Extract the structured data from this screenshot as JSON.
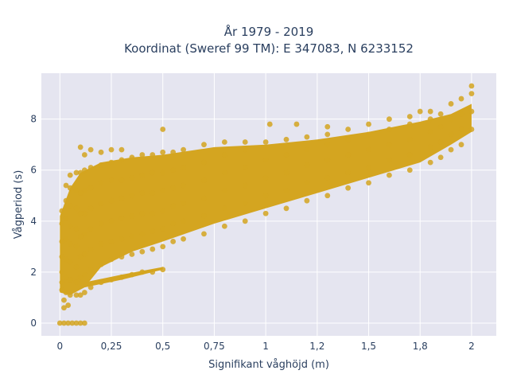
{
  "chart_data": {
    "type": "scatter",
    "title_line1": "År 1979 - 2019",
    "title_line2": "Koordinat (Sweref 99 TM): E 347083, N 6233152",
    "xlabel": "Signifikant våghöjd (m)",
    "ylabel": "Vågperiod (s)",
    "xlim": [
      -0.09,
      2.12
    ],
    "ylim": [
      -0.5,
      9.8
    ],
    "x_ticks": [
      {
        "value": 0,
        "label": "0"
      },
      {
        "value": 0.25,
        "label": "0,25"
      },
      {
        "value": 0.5,
        "label": "0,5"
      },
      {
        "value": 0.75,
        "label": "0,75"
      },
      {
        "value": 1.0,
        "label": "1"
      },
      {
        "value": 1.25,
        "label": "1,2"
      },
      {
        "value": 1.5,
        "label": "1,5"
      },
      {
        "value": 1.75,
        "label": "1,8"
      },
      {
        "value": 2.0,
        "label": "2"
      }
    ],
    "y_ticks": [
      {
        "value": 0,
        "label": "0"
      },
      {
        "value": 2,
        "label": "2"
      },
      {
        "value": 4,
        "label": "4"
      },
      {
        "value": 6,
        "label": "6"
      },
      {
        "value": 8,
        "label": "8"
      }
    ],
    "grid": true,
    "marker_color": "#d4a520",
    "plot_background": "#e5e5f0",
    "series": [
      {
        "points": [
          [
            0.0,
            0.0
          ],
          [
            0.02,
            0.0
          ],
          [
            0.04,
            0.0
          ],
          [
            0.06,
            0.0
          ],
          [
            0.08,
            0.0
          ],
          [
            0.1,
            0.0
          ],
          [
            0.12,
            0.0
          ],
          [
            0.01,
            1.3
          ],
          [
            0.01,
            1.6
          ],
          [
            0.01,
            2.0
          ],
          [
            0.01,
            2.6
          ],
          [
            0.01,
            3.2
          ],
          [
            0.01,
            3.9
          ],
          [
            0.01,
            4.4
          ],
          [
            0.03,
            1.2
          ],
          [
            0.03,
            1.8
          ],
          [
            0.03,
            2.5
          ],
          [
            0.03,
            3.3
          ],
          [
            0.03,
            4.1
          ],
          [
            0.03,
            4.8
          ],
          [
            0.03,
            5.4
          ],
          [
            0.05,
            1.1
          ],
          [
            0.05,
            1.7
          ],
          [
            0.05,
            2.4
          ],
          [
            0.05,
            3.1
          ],
          [
            0.05,
            3.8
          ],
          [
            0.05,
            4.6
          ],
          [
            0.05,
            5.3
          ],
          [
            0.05,
            5.8
          ],
          [
            0.08,
            1.1
          ],
          [
            0.08,
            1.6
          ],
          [
            0.08,
            2.2
          ],
          [
            0.08,
            3.0
          ],
          [
            0.08,
            3.7
          ],
          [
            0.08,
            4.5
          ],
          [
            0.08,
            5.2
          ],
          [
            0.08,
            5.9
          ],
          [
            0.1,
            1.1
          ],
          [
            0.1,
            1.8
          ],
          [
            0.1,
            2.6
          ],
          [
            0.1,
            3.4
          ],
          [
            0.1,
            4.3
          ],
          [
            0.1,
            5.1
          ],
          [
            0.1,
            5.9
          ],
          [
            0.1,
            6.9
          ],
          [
            0.12,
            1.2
          ],
          [
            0.12,
            1.9
          ],
          [
            0.12,
            2.7
          ],
          [
            0.12,
            3.5
          ],
          [
            0.12,
            4.3
          ],
          [
            0.12,
            5.2
          ],
          [
            0.12,
            6.0
          ],
          [
            0.12,
            6.6
          ],
          [
            0.15,
            1.4
          ],
          [
            0.15,
            2.1
          ],
          [
            0.15,
            2.9
          ],
          [
            0.15,
            3.7
          ],
          [
            0.15,
            4.5
          ],
          [
            0.15,
            5.3
          ],
          [
            0.15,
            6.1
          ],
          [
            0.15,
            6.8
          ],
          [
            0.2,
            1.6
          ],
          [
            0.2,
            2.3
          ],
          [
            0.2,
            3.1
          ],
          [
            0.2,
            3.9
          ],
          [
            0.2,
            4.7
          ],
          [
            0.2,
            5.5
          ],
          [
            0.2,
            6.2
          ],
          [
            0.2,
            6.7
          ],
          [
            0.25,
            1.7
          ],
          [
            0.25,
            2.5
          ],
          [
            0.25,
            3.2
          ],
          [
            0.25,
            4.0
          ],
          [
            0.25,
            4.8
          ],
          [
            0.25,
            5.6
          ],
          [
            0.25,
            6.3
          ],
          [
            0.25,
            6.8
          ],
          [
            0.3,
            1.8
          ],
          [
            0.3,
            2.6
          ],
          [
            0.3,
            3.3
          ],
          [
            0.3,
            4.1
          ],
          [
            0.3,
            4.9
          ],
          [
            0.3,
            5.6
          ],
          [
            0.3,
            6.4
          ],
          [
            0.3,
            6.8
          ],
          [
            0.35,
            1.9
          ],
          [
            0.35,
            2.7
          ],
          [
            0.35,
            3.4
          ],
          [
            0.35,
            4.2
          ],
          [
            0.35,
            5.0
          ],
          [
            0.35,
            5.7
          ],
          [
            0.35,
            6.5
          ],
          [
            0.4,
            2.0
          ],
          [
            0.4,
            2.8
          ],
          [
            0.4,
            3.5
          ],
          [
            0.4,
            4.3
          ],
          [
            0.4,
            5.1
          ],
          [
            0.4,
            5.8
          ],
          [
            0.4,
            6.6
          ],
          [
            0.45,
            2.0
          ],
          [
            0.45,
            2.9
          ],
          [
            0.45,
            3.6
          ],
          [
            0.45,
            4.3
          ],
          [
            0.45,
            5.1
          ],
          [
            0.45,
            5.9
          ],
          [
            0.45,
            6.6
          ],
          [
            0.5,
            2.1
          ],
          [
            0.5,
            3.0
          ],
          [
            0.5,
            3.7
          ],
          [
            0.5,
            4.4
          ],
          [
            0.5,
            5.2
          ],
          [
            0.5,
            5.9
          ],
          [
            0.5,
            6.7
          ],
          [
            0.5,
            7.6
          ],
          [
            0.55,
            3.2
          ],
          [
            0.55,
            3.9
          ],
          [
            0.55,
            4.6
          ],
          [
            0.55,
            5.3
          ],
          [
            0.55,
            6.0
          ],
          [
            0.55,
            6.7
          ],
          [
            0.6,
            3.3
          ],
          [
            0.6,
            4.0
          ],
          [
            0.6,
            4.7
          ],
          [
            0.6,
            5.4
          ],
          [
            0.6,
            6.1
          ],
          [
            0.6,
            6.8
          ],
          [
            0.7,
            3.5
          ],
          [
            0.7,
            4.2
          ],
          [
            0.7,
            4.9
          ],
          [
            0.7,
            5.6
          ],
          [
            0.7,
            6.3
          ],
          [
            0.7,
            7.0
          ],
          [
            0.8,
            3.8
          ],
          [
            0.8,
            4.5
          ],
          [
            0.8,
            5.2
          ],
          [
            0.8,
            5.9
          ],
          [
            0.8,
            6.6
          ],
          [
            0.8,
            7.1
          ],
          [
            0.9,
            4.0
          ],
          [
            0.9,
            4.7
          ],
          [
            0.9,
            5.4
          ],
          [
            0.9,
            6.1
          ],
          [
            0.9,
            6.8
          ],
          [
            0.9,
            7.1
          ],
          [
            1.0,
            4.3
          ],
          [
            1.0,
            5.0
          ],
          [
            1.0,
            5.7
          ],
          [
            1.0,
            6.4
          ],
          [
            1.0,
            7.1
          ],
          [
            1.02,
            7.8
          ],
          [
            1.15,
            7.8
          ],
          [
            1.3,
            7.7
          ],
          [
            1.1,
            4.5
          ],
          [
            1.1,
            5.2
          ],
          [
            1.1,
            5.9
          ],
          [
            1.1,
            6.6
          ],
          [
            1.1,
            7.2
          ],
          [
            1.2,
            4.8
          ],
          [
            1.2,
            5.5
          ],
          [
            1.2,
            6.2
          ],
          [
            1.2,
            6.8
          ],
          [
            1.2,
            7.3
          ],
          [
            1.3,
            5.0
          ],
          [
            1.3,
            5.7
          ],
          [
            1.3,
            6.4
          ],
          [
            1.3,
            7.0
          ],
          [
            1.3,
            7.4
          ],
          [
            1.4,
            5.3
          ],
          [
            1.4,
            5.9
          ],
          [
            1.4,
            6.6
          ],
          [
            1.4,
            7.2
          ],
          [
            1.4,
            7.6
          ],
          [
            1.5,
            5.5
          ],
          [
            1.5,
            6.1
          ],
          [
            1.5,
            6.8
          ],
          [
            1.5,
            7.4
          ],
          [
            1.5,
            7.8
          ],
          [
            1.6,
            5.8
          ],
          [
            1.6,
            6.4
          ],
          [
            1.6,
            7.0
          ],
          [
            1.6,
            7.6
          ],
          [
            1.6,
            8.0
          ],
          [
            1.7,
            6.0
          ],
          [
            1.7,
            6.6
          ],
          [
            1.7,
            7.2
          ],
          [
            1.7,
            7.8
          ],
          [
            1.7,
            8.1
          ],
          [
            1.75,
            8.3
          ],
          [
            1.8,
            6.3
          ],
          [
            1.8,
            6.9
          ],
          [
            1.8,
            7.5
          ],
          [
            1.8,
            8.0
          ],
          [
            1.8,
            8.3
          ],
          [
            1.85,
            6.5
          ],
          [
            1.85,
            7.1
          ],
          [
            1.85,
            7.7
          ],
          [
            1.85,
            8.2
          ],
          [
            1.9,
            6.8
          ],
          [
            1.9,
            7.4
          ],
          [
            1.9,
            8.0
          ],
          [
            1.9,
            8.6
          ],
          [
            1.95,
            7.0
          ],
          [
            1.95,
            7.6
          ],
          [
            1.95,
            8.2
          ],
          [
            1.95,
            8.8
          ],
          [
            2.0,
            7.6
          ],
          [
            2.0,
            8.3
          ],
          [
            2.0,
            9.0
          ],
          [
            2.0,
            9.3
          ],
          [
            0.02,
            0.6
          ],
          [
            0.02,
            0.9
          ],
          [
            0.04,
            0.7
          ]
        ]
      }
    ]
  }
}
